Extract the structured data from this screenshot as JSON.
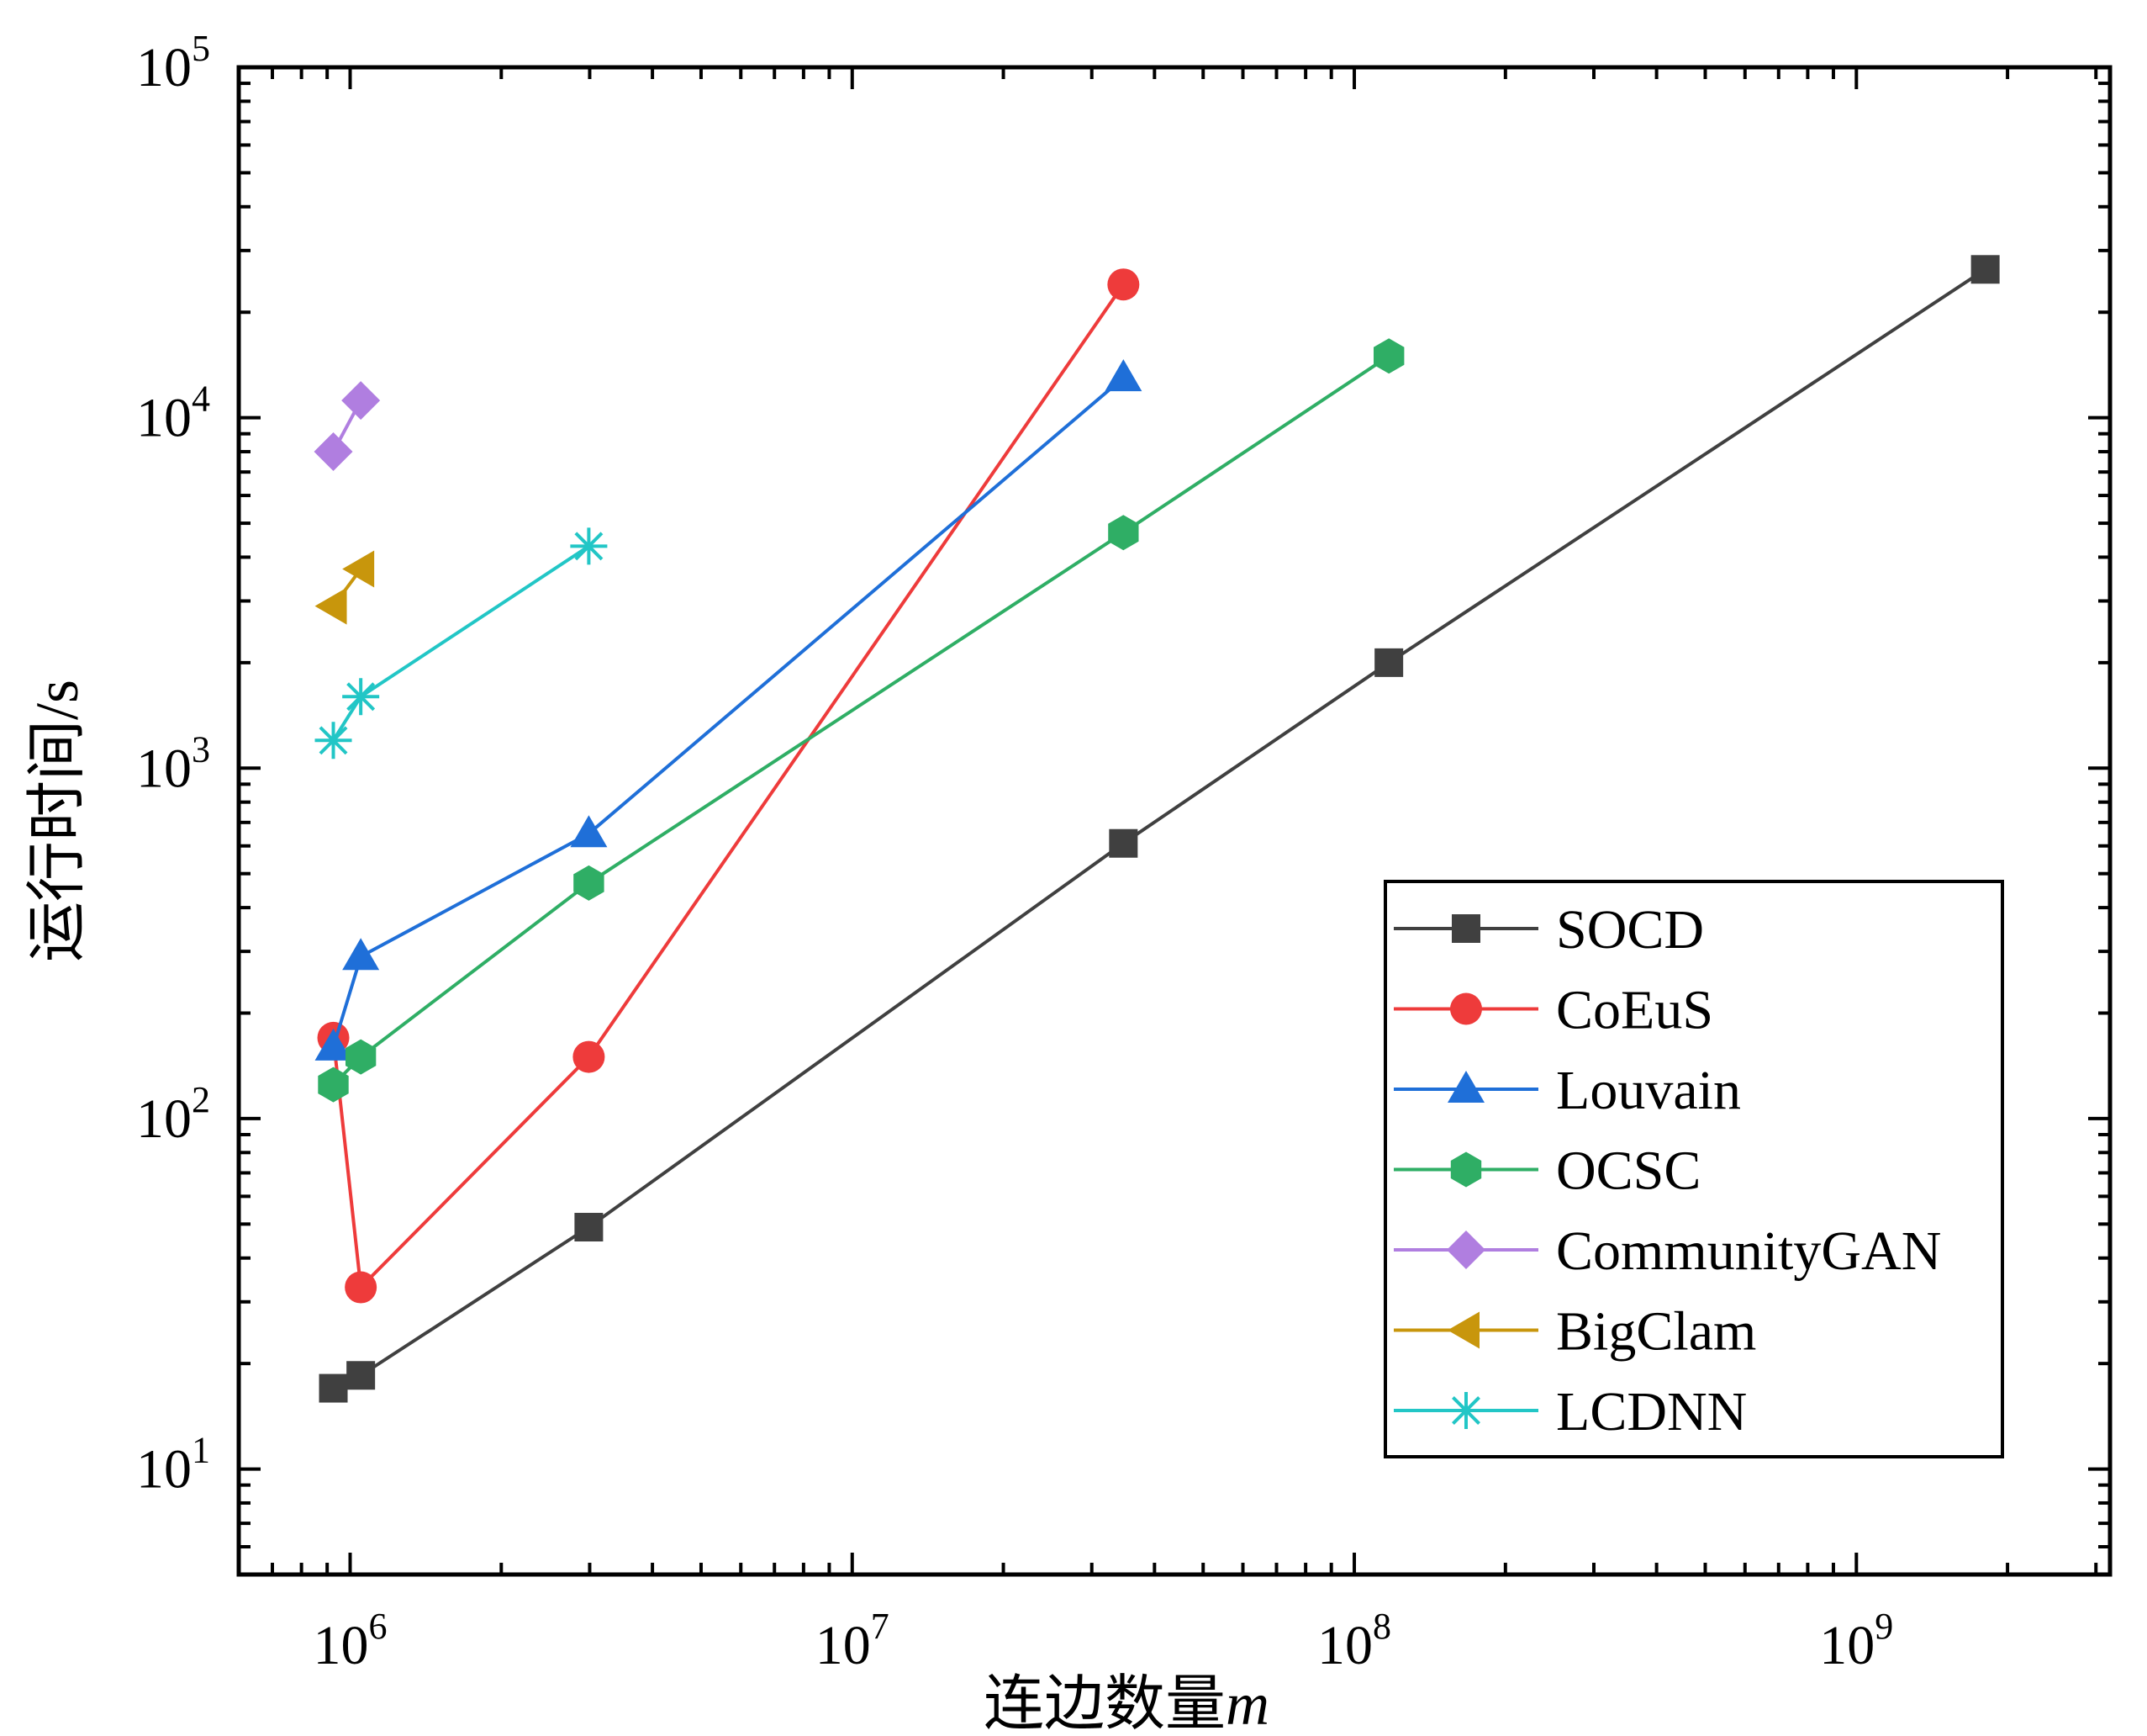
{
  "chart_data": {
    "type": "line",
    "xlabel": "连边数量",
    "xlabel_var": "m",
    "ylabel": "运行时间/s",
    "xscale": "log",
    "yscale": "log",
    "xlim": [
      600000,
      3200000000
    ],
    "ylim": [
      5,
      100000
    ],
    "grid": false,
    "legend_position": "lower-right",
    "x_ticks": [
      {
        "base": "10",
        "exp": "6",
        "value": 1000000
      },
      {
        "base": "10",
        "exp": "7",
        "value": 10000000
      },
      {
        "base": "10",
        "exp": "8",
        "value": 100000000
      },
      {
        "base": "10",
        "exp": "9",
        "value": 1000000000
      }
    ],
    "y_ticks": [
      {
        "base": "10",
        "exp": "1",
        "value": 10
      },
      {
        "base": "10",
        "exp": "2",
        "value": 100
      },
      {
        "base": "10",
        "exp": "3",
        "value": 1000
      },
      {
        "base": "10",
        "exp": "4",
        "value": 10000
      },
      {
        "base": "10",
        "exp": "5",
        "value": 100000
      }
    ],
    "series": [
      {
        "name": "SOCD",
        "color": "#404040",
        "marker": "square",
        "x": [
          925872,
          1050000,
          2987624,
          34681189,
          117185083,
          1806067135
        ],
        "y": [
          17,
          18.5,
          49,
          610,
          2000,
          26500
        ]
      },
      {
        "name": "CoEuS",
        "color": "#ee3b3b",
        "marker": "circle",
        "x": [
          925872,
          1050000,
          2987624,
          34681189
        ],
        "y": [
          170,
          33,
          150,
          24000
        ]
      },
      {
        "name": "Louvain",
        "color": "#1f6fd8",
        "marker": "triangle-up",
        "x": [
          925872,
          1050000,
          2987624,
          34681189
        ],
        "y": [
          160,
          290,
          650,
          13000
        ]
      },
      {
        "name": "OCSC",
        "color": "#2fae65",
        "marker": "hexagon",
        "x": [
          925872,
          1050000,
          2987624,
          34681189,
          117185083
        ],
        "y": [
          125,
          150,
          470,
          4700,
          15000
        ]
      },
      {
        "name": "CommunityGAN",
        "color": "#b07ee0",
        "marker": "diamond",
        "x": [
          925872,
          1050000
        ],
        "y": [
          8000,
          11200
        ]
      },
      {
        "name": "BigClam",
        "color": "#c8960c",
        "marker": "triangle-left",
        "x": [
          925872,
          1050000
        ],
        "y": [
          2900,
          3700
        ]
      },
      {
        "name": "LCDNN",
        "color": "#22c6c6",
        "marker": "asterisk",
        "x": [
          925872,
          1050000,
          2987624
        ],
        "y": [
          1200,
          1600,
          4300
        ]
      }
    ]
  }
}
